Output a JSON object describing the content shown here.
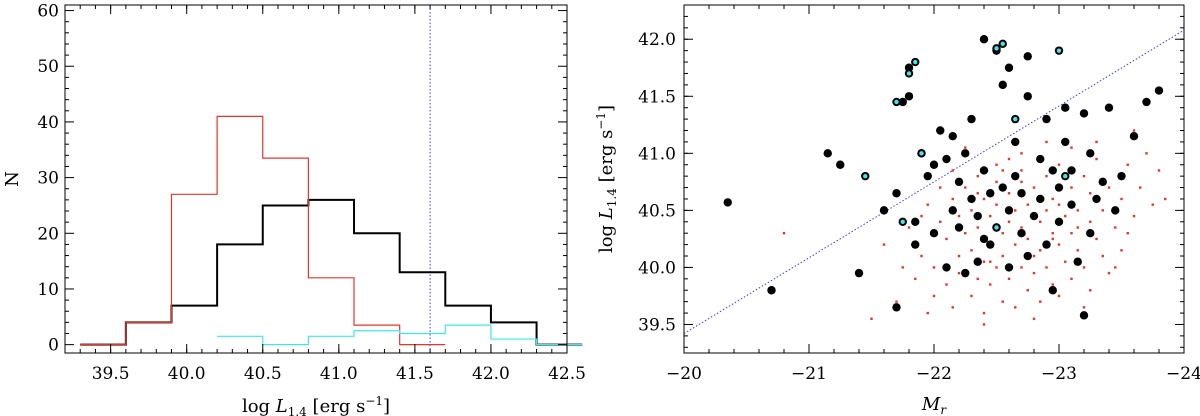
{
  "chart_data": [
    {
      "type": "histogram",
      "xlabel": "log L",
      "xlabel_sub": "1.4",
      "xlabel_units": "[erg s",
      "xlabel_exp": "−1",
      "xlabel_close": "]",
      "ylabel": "N",
      "xlim": [
        39.2,
        42.5
      ],
      "ylim": [
        -1.5,
        61
      ],
      "xticks": [
        39.5,
        40.0,
        40.5,
        41.0,
        41.5,
        42.0,
        42.5
      ],
      "xtick_labels": [
        "39.5",
        "40.0",
        "40.5",
        "41.0",
        "41.5",
        "42.0",
        "42.5"
      ],
      "yticks": [
        0,
        10,
        20,
        30,
        40,
        50,
        60
      ],
      "ytick_labels": [
        "0",
        "10",
        "20",
        "30",
        "40",
        "50",
        "60"
      ],
      "vline": 41.6,
      "colors": {
        "black": "#000000",
        "red": "#e8342a",
        "cyan": "#3ee8ea",
        "vline": "#3a3ae0"
      },
      "series": [
        {
          "color": "black",
          "edges": [
            39.3,
            39.6,
            39.9,
            40.2,
            40.5,
            40.8,
            41.1,
            41.4,
            41.7,
            42.0,
            42.3
          ],
          "values": [
            0,
            4,
            7,
            18,
            25,
            26,
            20,
            13,
            7,
            4,
            0
          ]
        },
        {
          "color": "red",
          "edges": [
            39.3,
            39.6,
            39.9,
            40.2,
            40.5,
            40.8,
            41.1,
            41.4
          ],
          "values": [
            0,
            4,
            27,
            41,
            33.5,
            12,
            3.5,
            0
          ]
        },
        {
          "color": "cyan",
          "edges": [
            40.2,
            40.5,
            40.8,
            41.1,
            41.4,
            41.7,
            42.0,
            42.3
          ],
          "values": [
            1.5,
            0,
            1.5,
            2.5,
            2,
            3.5,
            1,
            0
          ]
        }
      ]
    },
    {
      "type": "scatter",
      "xlabel": "M",
      "xlabel_sub": "r",
      "ylabel": "log L",
      "ylabel_sub": "1.4",
      "ylabel_units": "[erg s",
      "ylabel_exp": "−1",
      "ylabel_close": "]",
      "xlim": [
        -20,
        -24
      ],
      "ylim": [
        39.25,
        42.3
      ],
      "xticks": [
        -20,
        -21,
        -22,
        -23,
        -24
      ],
      "xtick_labels": [
        "−20",
        "−21",
        "−22",
        "−23",
        "−24"
      ],
      "yticks": [
        39.5,
        40.0,
        40.5,
        41.0,
        41.5,
        42.0
      ],
      "ytick_labels": [
        "39.5",
        "40.0",
        "40.5",
        "41.0",
        "41.5",
        "42.0"
      ],
      "line": [
        [
          -20,
          39.42
        ],
        [
          -24,
          42.08
        ]
      ],
      "colors": {
        "black": "#000000",
        "red": "#e8342a",
        "cyan": "#3ee8ea",
        "line": "#3a3ae0"
      },
      "black_points": [
        [
          -20.35,
          40.57
        ],
        [
          -20.7,
          39.8
        ],
        [
          -21.15,
          41.0
        ],
        [
          -21.25,
          40.9
        ],
        [
          -21.4,
          39.95
        ],
        [
          -21.6,
          40.5
        ],
        [
          -21.7,
          39.65
        ],
        [
          -21.7,
          40.65
        ],
        [
          -21.75,
          41.45
        ],
        [
          -21.8,
          41.5
        ],
        [
          -21.85,
          40.2
        ],
        [
          -21.9,
          41.0
        ],
        [
          -21.95,
          40.8
        ],
        [
          -22.0,
          40.3
        ],
        [
          -22.0,
          40.9
        ],
        [
          -22.05,
          41.2
        ],
        [
          -22.1,
          40.95
        ],
        [
          -22.1,
          40.0
        ],
        [
          -22.15,
          40.5
        ],
        [
          -22.2,
          40.35
        ],
        [
          -22.2,
          40.75
        ],
        [
          -22.25,
          41.0
        ],
        [
          -22.25,
          39.95
        ],
        [
          -22.3,
          41.3
        ],
        [
          -22.3,
          40.6
        ],
        [
          -22.35,
          40.45
        ],
        [
          -22.35,
          40.05
        ],
        [
          -22.4,
          42.0
        ],
        [
          -22.4,
          40.85
        ],
        [
          -22.45,
          40.65
        ],
        [
          -22.45,
          40.2
        ],
        [
          -22.5,
          41.9
        ],
        [
          -22.5,
          40.35
        ],
        [
          -22.55,
          40.7
        ],
        [
          -22.55,
          41.6
        ],
        [
          -22.6,
          40.5
        ],
        [
          -22.6,
          40.0
        ],
        [
          -22.65,
          41.1
        ],
        [
          -22.65,
          40.8
        ],
        [
          -22.7,
          40.3
        ],
        [
          -22.7,
          40.65
        ],
        [
          -22.75,
          41.85
        ],
        [
          -22.75,
          41.5
        ],
        [
          -22.8,
          40.45
        ],
        [
          -22.85,
          40.95
        ],
        [
          -22.85,
          40.6
        ],
        [
          -22.9,
          41.3
        ],
        [
          -22.9,
          40.2
        ],
        [
          -22.95,
          39.8
        ],
        [
          -23.0,
          40.7
        ],
        [
          -23.0,
          40.4
        ],
        [
          -23.05,
          41.1
        ],
        [
          -23.1,
          40.55
        ],
        [
          -23.1,
          40.85
        ],
        [
          -23.15,
          40.05
        ],
        [
          -23.2,
          41.35
        ],
        [
          -23.2,
          39.58
        ],
        [
          -23.25,
          41.0
        ],
        [
          -23.3,
          40.6
        ],
        [
          -23.35,
          40.75
        ],
        [
          -23.4,
          41.4
        ],
        [
          -23.45,
          40.5
        ],
        [
          -23.5,
          40.8
        ],
        [
          -23.6,
          41.15
        ],
        [
          -23.7,
          41.45
        ],
        [
          -23.8,
          41.55
        ],
        [
          -21.8,
          41.75
        ],
        [
          -21.85,
          40.4
        ],
        [
          -22.15,
          41.15
        ],
        [
          -22.4,
          40.25
        ],
        [
          -22.6,
          41.75
        ],
        [
          -22.75,
          40.1
        ],
        [
          -22.95,
          40.85
        ],
        [
          -23.05,
          41.4
        ],
        [
          -23.25,
          40.3
        ]
      ],
      "cyan_points": [
        [
          -21.45,
          40.8
        ],
        [
          -21.75,
          40.4
        ],
        [
          -21.7,
          41.45
        ],
        [
          -21.8,
          41.7
        ],
        [
          -21.85,
          41.8
        ],
        [
          -21.9,
          41.0
        ],
        [
          -22.5,
          41.92
        ],
        [
          -22.55,
          41.96
        ],
        [
          -22.65,
          41.3
        ],
        [
          -22.5,
          40.35
        ],
        [
          -23.0,
          41.9
        ],
        [
          -23.05,
          40.8
        ]
      ],
      "red_points": [
        [
          -20.8,
          40.3
        ],
        [
          -21.5,
          39.55
        ],
        [
          -21.6,
          40.2
        ],
        [
          -21.7,
          39.7
        ],
        [
          -21.75,
          40.0
        ],
        [
          -21.8,
          40.35
        ],
        [
          -21.85,
          39.9
        ],
        [
          -21.9,
          40.1
        ],
        [
          -21.95,
          40.55
        ],
        [
          -21.95,
          39.6
        ],
        [
          -22.0,
          40.0
        ],
        [
          -22.05,
          40.4
        ],
        [
          -22.05,
          40.7
        ],
        [
          -22.1,
          39.85
        ],
        [
          -22.1,
          40.25
        ],
        [
          -22.15,
          39.65
        ],
        [
          -22.15,
          40.6
        ],
        [
          -22.2,
          40.1
        ],
        [
          -22.2,
          40.45
        ],
        [
          -22.2,
          39.95
        ],
        [
          -22.25,
          40.3
        ],
        [
          -22.25,
          40.7
        ],
        [
          -22.3,
          39.75
        ],
        [
          -22.3,
          40.15
        ],
        [
          -22.3,
          40.5
        ],
        [
          -22.35,
          39.9
        ],
        [
          -22.35,
          40.35
        ],
        [
          -22.35,
          40.8
        ],
        [
          -22.4,
          40.05
        ],
        [
          -22.4,
          40.6
        ],
        [
          -22.4,
          39.6
        ],
        [
          -22.45,
          40.2
        ],
        [
          -22.45,
          40.45
        ],
        [
          -22.45,
          39.85
        ],
        [
          -22.5,
          40.0
        ],
        [
          -22.5,
          40.55
        ],
        [
          -22.5,
          40.75
        ],
        [
          -22.55,
          39.7
        ],
        [
          -22.55,
          40.3
        ],
        [
          -22.55,
          40.1
        ],
        [
          -22.6,
          40.4
        ],
        [
          -22.6,
          39.9
        ],
        [
          -22.6,
          40.65
        ],
        [
          -22.65,
          40.2
        ],
        [
          -22.65,
          39.65
        ],
        [
          -22.65,
          40.5
        ],
        [
          -22.7,
          40.0
        ],
        [
          -22.7,
          40.85
        ],
        [
          -22.7,
          40.35
        ],
        [
          -22.75,
          39.8
        ],
        [
          -22.75,
          40.55
        ],
        [
          -22.75,
          40.25
        ],
        [
          -22.8,
          40.1
        ],
        [
          -22.8,
          40.7
        ],
        [
          -22.8,
          39.95
        ],
        [
          -22.85,
          40.4
        ],
        [
          -22.85,
          40.15
        ],
        [
          -22.85,
          39.7
        ],
        [
          -22.9,
          40.5
        ],
        [
          -22.9,
          40.0
        ],
        [
          -22.9,
          40.8
        ],
        [
          -22.95,
          40.3
        ],
        [
          -22.95,
          39.85
        ],
        [
          -22.95,
          40.6
        ],
        [
          -23.0,
          40.2
        ],
        [
          -23.0,
          39.75
        ],
        [
          -23.0,
          40.9
        ],
        [
          -23.05,
          40.45
        ],
        [
          -23.05,
          40.05
        ],
        [
          -23.1,
          40.3
        ],
        [
          -23.1,
          39.9
        ],
        [
          -23.1,
          40.7
        ],
        [
          -23.15,
          40.5
        ],
        [
          -23.15,
          40.15
        ],
        [
          -23.2,
          40.8
        ],
        [
          -23.2,
          40.0
        ],
        [
          -23.25,
          40.4
        ],
        [
          -23.25,
          39.8
        ],
        [
          -23.3,
          40.25
        ],
        [
          -23.3,
          40.95
        ],
        [
          -23.35,
          40.5
        ],
        [
          -23.35,
          40.1
        ],
        [
          -23.4,
          40.7
        ],
        [
          -23.4,
          39.95
        ],
        [
          -23.45,
          40.35
        ],
        [
          -23.5,
          40.6
        ],
        [
          -23.5,
          40.15
        ],
        [
          -23.55,
          40.9
        ],
        [
          -23.6,
          40.45
        ],
        [
          -23.65,
          40.7
        ],
        [
          -23.7,
          41.0
        ],
        [
          -23.75,
          40.55
        ],
        [
          -23.8,
          40.85
        ],
        [
          -23.85,
          40.6
        ],
        [
          -22.15,
          40.85
        ],
        [
          -22.25,
          41.05
        ],
        [
          -22.5,
          40.9
        ],
        [
          -22.7,
          41.0
        ],
        [
          -22.9,
          41.1
        ],
        [
          -23.1,
          41.05
        ],
        [
          -23.3,
          41.1
        ],
        [
          -23.6,
          41.2
        ],
        [
          -22.4,
          39.5
        ],
        [
          -22.8,
          39.55
        ],
        [
          -23.2,
          39.65
        ],
        [
          -22.0,
          39.75
        ],
        [
          -21.9,
          40.45
        ],
        [
          -23.45,
          40.0
        ],
        [
          -22.6,
          40.95
        ],
        [
          -22.35,
          40.65
        ],
        [
          -23.0,
          40.55
        ],
        [
          -22.15,
          40.5
        ],
        [
          -23.25,
          40.65
        ],
        [
          -22.7,
          40.75
        ],
        [
          -22.45,
          40.05
        ],
        [
          -22.95,
          40.25
        ],
        [
          -23.55,
          40.3
        ],
        [
          -23.15,
          40.35
        ],
        [
          -22.55,
          40.85
        ],
        [
          -22.85,
          40.95
        ]
      ]
    }
  ]
}
